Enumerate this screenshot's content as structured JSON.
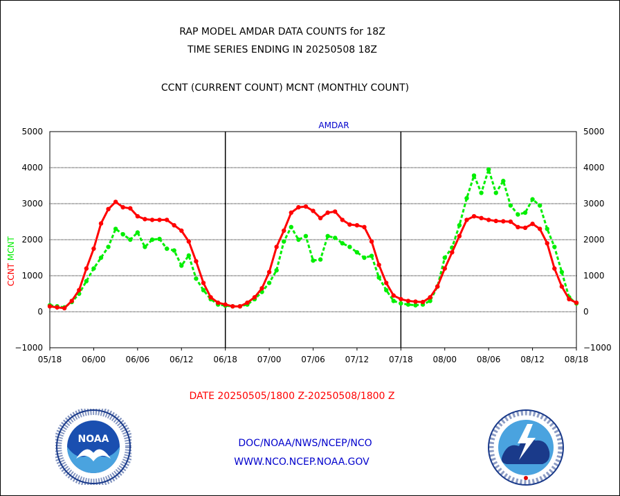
{
  "header": {
    "title_line1": "RAP MODEL AMDAR DATA COUNTS for 18Z",
    "title_line2": "TIME SERIES ENDING IN 20250508 18Z",
    "subtitle": "CCNT (CURRENT COUNT) MCNT (MONTHLY COUNT)"
  },
  "chart_data": {
    "type": "line",
    "title": "AMDAR",
    "ylabel_left_ccnt": "CCNT",
    "ylabel_left_mcnt": "MCNT",
    "ylim": [
      -1000,
      5000
    ],
    "yticks": [
      -1000,
      0,
      1000,
      2000,
      3000,
      4000,
      5000
    ],
    "xticks": [
      "05/18",
      "06/00",
      "06/06",
      "06/12",
      "06/18",
      "07/00",
      "07/06",
      "07/12",
      "07/18",
      "08/00",
      "08/06",
      "08/12",
      "08/18"
    ],
    "x_start_hour": 0,
    "x_end_hour": 72,
    "day_separators_hours": [
      24,
      48
    ],
    "grid": true,
    "series": [
      {
        "name": "CCNT",
        "color": "#ff0000",
        "values": [
          150,
          120,
          100,
          300,
          600,
          1200,
          1750,
          2450,
          2850,
          3050,
          2900,
          2870,
          2650,
          2570,
          2550,
          2550,
          2550,
          2400,
          2250,
          1950,
          1400,
          800,
          400,
          250,
          200,
          150,
          150,
          250,
          400,
          650,
          1100,
          1800,
          2250,
          2750,
          2900,
          2920,
          2800,
          2600,
          2750,
          2780,
          2550,
          2420,
          2400,
          2350,
          1950,
          1300,
          800,
          450,
          350,
          300,
          280,
          270,
          400,
          700,
          1200,
          1650,
          2100,
          2550,
          2650,
          2600,
          2550,
          2520,
          2510,
          2500,
          2350,
          2330,
          2440,
          2300,
          1900,
          1200,
          700,
          350,
          250
        ]
      },
      {
        "name": "MCNT",
        "color": "#00ee00",
        "values": [
          180,
          150,
          120,
          270,
          500,
          850,
          1200,
          1500,
          1800,
          2300,
          2150,
          2000,
          2200,
          1800,
          2000,
          2020,
          1750,
          1700,
          1280,
          1560,
          920,
          600,
          350,
          200,
          170,
          150,
          150,
          200,
          350,
          550,
          800,
          1150,
          1950,
          2350,
          2000,
          2100,
          1420,
          1450,
          2100,
          2050,
          1900,
          1800,
          1650,
          1500,
          1550,
          950,
          600,
          300,
          230,
          200,
          180,
          200,
          300,
          700,
          1500,
          1780,
          2400,
          3150,
          3780,
          3300,
          3950,
          3300,
          3630,
          2950,
          2700,
          2750,
          3120,
          2950,
          2300,
          1800,
          1100,
          400,
          230
        ]
      }
    ]
  },
  "footer": {
    "date_range": "DATE 20250505/1800 Z-20250508/1800 Z",
    "org_line1": "DOC/NOAA/NWS/NCEP/NCO",
    "org_line2": "WWW.NCO.NCEP.NOAA.GOV"
  },
  "colors": {
    "title_text": "#000000",
    "amdar_label": "#0000cc",
    "date_text": "#ff0000",
    "footer_text": "#0000cc"
  },
  "logos": {
    "left": "noaa-logo",
    "right": "nws-logo",
    "left_text": "NOAA"
  }
}
